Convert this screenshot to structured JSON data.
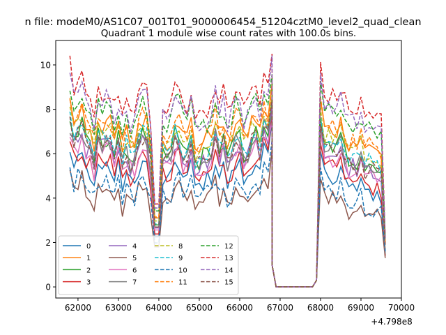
{
  "figure": {
    "suptitle": "n file: modeM0/AS1C07_001T01_9000006454_51204cztM0_level2_quad_clean",
    "offset_label": "+4.798e8"
  },
  "chart_data": {
    "type": "line",
    "title": "Quadrant 1 module wise count rates with 100.0s bins.",
    "xlabel": "",
    "ylabel": "",
    "x_offset": 479800000,
    "xlim": [
      61450,
      70000
    ],
    "ylim": [
      -0.5,
      11.1
    ],
    "x_ticks": [
      62000,
      63000,
      64000,
      65000,
      66000,
      67000,
      68000,
      69000,
      70000
    ],
    "y_ticks": [
      0,
      2,
      4,
      6,
      8,
      10
    ],
    "grid": false,
    "legend_placement": "lower-left",
    "legend_columns": 4,
    "segments": [
      {
        "x0": 61800,
        "step": 100,
        "n": 51,
        "active": true
      },
      {
        "x0": 66900,
        "step": 100,
        "n": 10,
        "active": false
      },
      {
        "x0": 67900,
        "step": 100,
        "n": 18,
        "active": true
      }
    ],
    "series": [
      {
        "name": "0",
        "color": "#1f77b4",
        "dash": false,
        "base": 5.0,
        "end": 1.4
      },
      {
        "name": "1",
        "color": "#ff7f0e",
        "dash": false,
        "base": 6.9,
        "end": 1.5
      },
      {
        "name": "2",
        "color": "#2ca02c",
        "dash": false,
        "base": 6.2,
        "end": 1.5
      },
      {
        "name": "3",
        "color": "#d62728",
        "dash": false,
        "base": 5.3,
        "end": 1.4
      },
      {
        "name": "4",
        "color": "#9467bd",
        "dash": false,
        "base": 5.9,
        "end": 1.5
      },
      {
        "name": "5",
        "color": "#8c564b",
        "dash": false,
        "base": 4.0,
        "end": 1.3
      },
      {
        "name": "6",
        "color": "#e377c2",
        "dash": false,
        "base": 5.7,
        "end": 1.5
      },
      {
        "name": "7",
        "color": "#7f7f7f",
        "dash": false,
        "base": 6.0,
        "end": 1.5
      },
      {
        "name": "8",
        "color": "#bcbd22",
        "dash": true,
        "base": 6.6,
        "end": 2.0
      },
      {
        "name": "9",
        "color": "#17becf",
        "dash": true,
        "base": 6.3,
        "end": 2.0
      },
      {
        "name": "10",
        "color": "#1f77b4",
        "dash": true,
        "base": 4.4,
        "end": 1.6
      },
      {
        "name": "11",
        "color": "#ff7f0e",
        "dash": true,
        "base": 7.0,
        "end": 2.0
      },
      {
        "name": "12",
        "color": "#2ca02c",
        "dash": true,
        "base": 7.6,
        "end": 2.2
      },
      {
        "name": "13",
        "color": "#d62728",
        "dash": true,
        "base": 8.3,
        "end": 2.3
      },
      {
        "name": "14",
        "color": "#9467bd",
        "dash": true,
        "base": 7.9,
        "end": 2.2
      },
      {
        "name": "15",
        "color": "#8c564b",
        "dash": true,
        "base": 6.0,
        "end": 1.9
      }
    ]
  }
}
